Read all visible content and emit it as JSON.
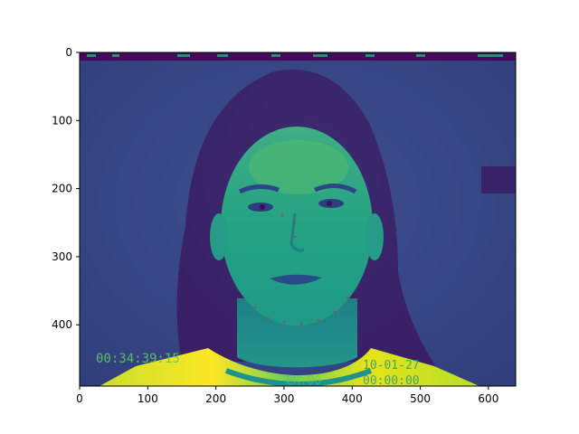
{
  "figure": {
    "image_width": 640,
    "image_height": 490,
    "xlim": [
      0,
      640
    ],
    "ylim": [
      490,
      0
    ],
    "x_ticks": [
      0,
      100,
      200,
      300,
      400,
      500,
      600
    ],
    "y_ticks": [
      0,
      100,
      200,
      300,
      400
    ],
    "colormap": "viridis"
  },
  "overlay_text": {
    "timecode": "00:34:39:15",
    "channel": "CH.00",
    "date": "10-01-27",
    "time": "00:00:00"
  },
  "colors": {
    "viridis_dark": "#440154",
    "viridis_blue": "#3b528b",
    "viridis_teal": "#21918c",
    "viridis_green": "#5ec962",
    "viridis_yellow": "#fde725"
  }
}
